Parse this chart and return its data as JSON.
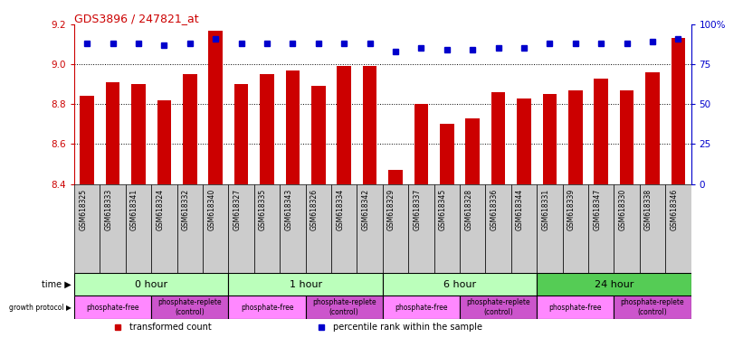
{
  "title": "GDS3896 / 247821_at",
  "samples": [
    "GSM618325",
    "GSM618333",
    "GSM618341",
    "GSM618324",
    "GSM618332",
    "GSM618340",
    "GSM618327",
    "GSM618335",
    "GSM618343",
    "GSM618326",
    "GSM618334",
    "GSM618342",
    "GSM618329",
    "GSM618337",
    "GSM618345",
    "GSM618328",
    "GSM618336",
    "GSM618344",
    "GSM618331",
    "GSM618339",
    "GSM618347",
    "GSM618330",
    "GSM618338",
    "GSM618346"
  ],
  "bar_values": [
    8.84,
    8.91,
    8.9,
    8.82,
    8.95,
    9.17,
    8.9,
    8.95,
    8.97,
    8.89,
    8.99,
    8.99,
    8.47,
    8.8,
    8.7,
    8.73,
    8.86,
    8.83,
    8.85,
    8.87,
    8.93,
    8.87,
    8.96,
    9.13
  ],
  "percentile_values": [
    88,
    88,
    88,
    87,
    88,
    91,
    88,
    88,
    88,
    88,
    88,
    88,
    83,
    85,
    84,
    84,
    85,
    85,
    88,
    88,
    88,
    88,
    89,
    91
  ],
  "ymin": 8.4,
  "ymax": 9.2,
  "yticks": [
    8.4,
    8.6,
    8.8,
    9.0,
    9.2
  ],
  "y2min": 0,
  "y2max": 100,
  "y2ticks": [
    0,
    25,
    50,
    75,
    100
  ],
  "bar_color": "#cc0000",
  "square_color": "#0000cc",
  "title_color": "#cc0000",
  "left_axis_color": "#cc0000",
  "right_axis_color": "#0000cc",
  "grid_color": "#000000",
  "sample_bg_color": "#cccccc",
  "time_groups": [
    {
      "label": "0 hour",
      "start": 0,
      "end": 6,
      "color": "#bbffbb"
    },
    {
      "label": "1 hour",
      "start": 6,
      "end": 12,
      "color": "#bbffbb"
    },
    {
      "label": "6 hour",
      "start": 12,
      "end": 18,
      "color": "#bbffbb"
    },
    {
      "label": "24 hour",
      "start": 18,
      "end": 24,
      "color": "#55cc55"
    }
  ],
  "growth_groups": [
    {
      "label": "phosphate-free",
      "start": 0,
      "end": 3,
      "color": "#ff88ff"
    },
    {
      "label": "phosphate-replete\n(control)",
      "start": 3,
      "end": 6,
      "color": "#cc55cc"
    },
    {
      "label": "phosphate-free",
      "start": 6,
      "end": 9,
      "color": "#ff88ff"
    },
    {
      "label": "phosphate-replete\n(control)",
      "start": 9,
      "end": 12,
      "color": "#cc55cc"
    },
    {
      "label": "phosphate-free",
      "start": 12,
      "end": 15,
      "color": "#ff88ff"
    },
    {
      "label": "phosphate-replete\n(control)",
      "start": 15,
      "end": 18,
      "color": "#cc55cc"
    },
    {
      "label": "phosphate-free",
      "start": 18,
      "end": 21,
      "color": "#ff88ff"
    },
    {
      "label": "phosphate-replete\n(control)",
      "start": 21,
      "end": 24,
      "color": "#cc55cc"
    }
  ],
  "legend_items": [
    {
      "label": "transformed count",
      "color": "#cc0000"
    },
    {
      "label": "percentile rank within the sample",
      "color": "#0000cc"
    }
  ],
  "bg_color": "#ffffff"
}
